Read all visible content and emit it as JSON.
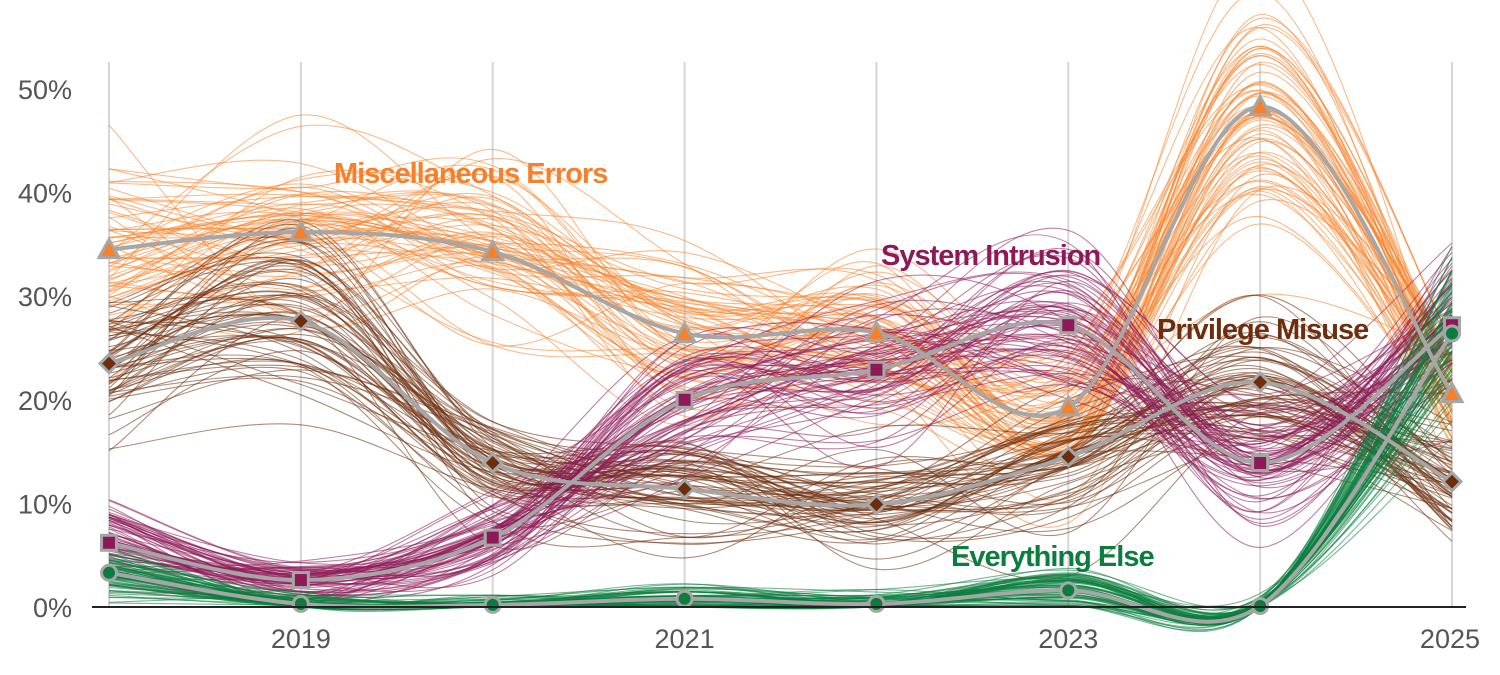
{
  "chart_data": {
    "type": "line",
    "title": "",
    "xlabel": "",
    "ylabel": "",
    "x": [
      2018,
      2019,
      2020,
      2021,
      2022,
      2023,
      2024,
      2025
    ],
    "x_ticks": [
      2019,
      2021,
      2023,
      2025
    ],
    "x_tick_labels": [
      "2019",
      "2021",
      "2023",
      "2025"
    ],
    "xlim": [
      2018,
      2025
    ],
    "ylim": [
      0,
      52
    ],
    "y_ticks": [
      0,
      10,
      20,
      30,
      40,
      50
    ],
    "y_tick_labels": [
      "0%",
      "10%",
      "20%",
      "30%",
      "40%",
      "50%"
    ],
    "grid": "vertical",
    "legend": "inline labels",
    "mean_line_color": "#a6a6a6",
    "series": [
      {
        "name": "Miscellaneous Errors",
        "color": "#f7812a",
        "marker": "triangle",
        "values": [
          34.5,
          36.2,
          34.3,
          26.4,
          26.5,
          19.3,
          48.3,
          20.6
        ]
      },
      {
        "name": "Privilege Misuse",
        "color": "#6e2d0c",
        "marker": "diamond",
        "values": [
          23.5,
          27.6,
          13.9,
          11.4,
          9.9,
          14.5,
          21.7,
          12.1
        ]
      },
      {
        "name": "System Intrusion",
        "color": "#8d1a57",
        "marker": "square",
        "values": [
          6.2,
          2.6,
          6.7,
          20.0,
          22.9,
          27.2,
          13.9,
          27.2
        ]
      },
      {
        "name": "Everything Else",
        "color": "#0b7d3e",
        "marker": "circle",
        "values": [
          3.3,
          0.3,
          0.2,
          0.8,
          0.3,
          1.6,
          0.1,
          26.4
        ]
      }
    ]
  }
}
